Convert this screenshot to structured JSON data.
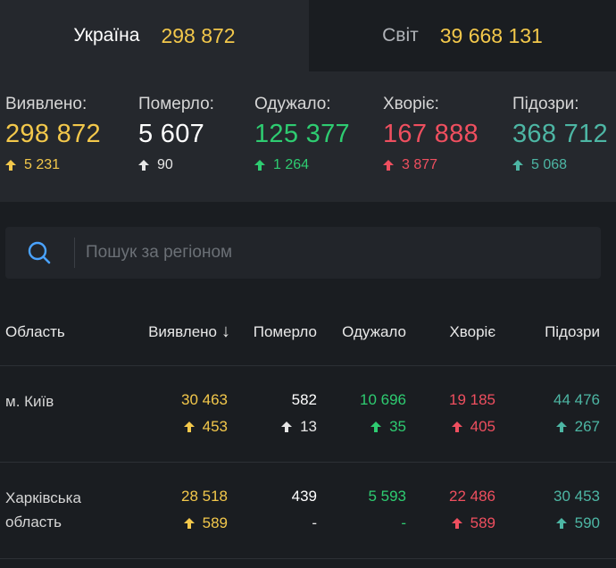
{
  "tabs": {
    "ukraine": {
      "label": "Україна",
      "value": "298 872"
    },
    "world": {
      "label": "Світ",
      "value": "39 668 131"
    }
  },
  "stats": [
    {
      "label": "Виявлено:",
      "value": "298 872",
      "delta": "5 231",
      "color": "#f3c84b"
    },
    {
      "label": "Померло:",
      "value": "5 607",
      "delta": "90",
      "color": "#ffffff"
    },
    {
      "label": "Одужало:",
      "value": "125 377",
      "delta": "1 264",
      "color": "#2ecc71"
    },
    {
      "label": "Хворіє:",
      "value": "167 888",
      "delta": "3 877",
      "color": "#ef4f5f"
    },
    {
      "label": "Підозри:",
      "value": "368 712",
      "delta": "5 068",
      "color": "#4db6a4"
    }
  ],
  "search": {
    "placeholder": "Пошук за регіоном",
    "value": ""
  },
  "table": {
    "headers": {
      "region": "Область",
      "detected": "Виявлено",
      "died": "Померло",
      "recovered": "Одужало",
      "sick": "Хворіє",
      "suspected": "Підозри"
    },
    "sort_icon": "arrow-down-icon",
    "rows": [
      {
        "region": "м. Київ",
        "detected": "30 463",
        "detected_delta": "453",
        "died": "582",
        "died_delta": "13",
        "recovered": "10 696",
        "recovered_delta": "35",
        "sick": "19 185",
        "sick_delta": "405",
        "suspected": "44 476",
        "suspected_delta": "267"
      },
      {
        "region": "Харківська область",
        "detected": "28 518",
        "detected_delta": "589",
        "died": "439",
        "died_delta": "-",
        "recovered": "5 593",
        "recovered_delta": "-",
        "sick": "22 486",
        "sick_delta": "589",
        "suspected": "30 453",
        "suspected_delta": "590"
      }
    ]
  }
}
